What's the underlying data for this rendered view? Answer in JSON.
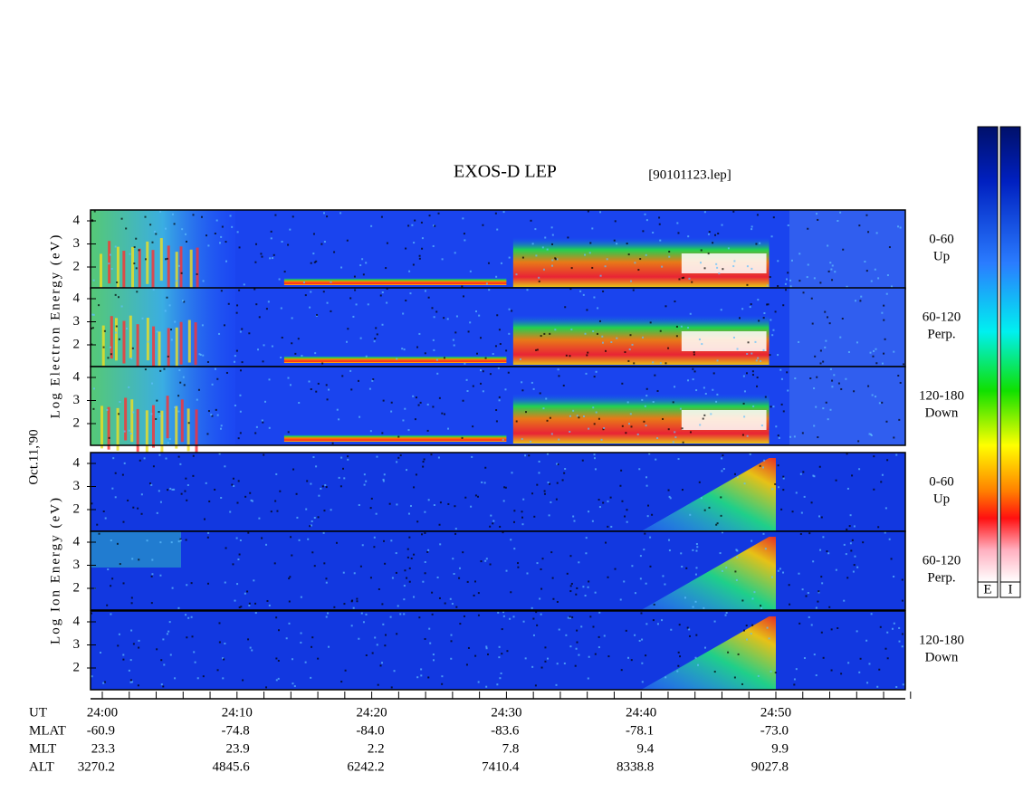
{
  "title": "EXOS-D LEP",
  "file_name": "[90101123.lep]",
  "date_label": "Oct.11,'90",
  "electron_axis_label": "Log Electron Energy (eV)",
  "ion_axis_label": "Log Ion Energy (eV)",
  "panels": [
    {
      "species": "electron",
      "pitch_range": "0-60",
      "direction": "Up",
      "yticks": [
        2,
        3,
        4
      ]
    },
    {
      "species": "electron",
      "pitch_range": "60-120",
      "direction": "Perp.",
      "yticks": [
        2,
        3,
        4
      ]
    },
    {
      "species": "electron",
      "pitch_range": "120-180",
      "direction": "Down",
      "yticks": [
        2,
        3,
        4
      ]
    },
    {
      "species": "ion",
      "pitch_range": "0-60",
      "direction": "Up",
      "yticks": [
        2,
        3,
        4
      ]
    },
    {
      "species": "ion",
      "pitch_range": "60-120",
      "direction": "Perp.",
      "yticks": [
        2,
        3,
        4
      ]
    },
    {
      "species": "ion",
      "pitch_range": "120-180",
      "direction": "Down",
      "yticks": [
        2,
        3,
        4
      ]
    }
  ],
  "time_axis": {
    "label": "UT",
    "ticks": [
      "24:00",
      "24:10",
      "24:20",
      "24:30",
      "24:40",
      "24:50"
    ]
  },
  "orbit_table": [
    {
      "label": "MLAT",
      "values": [
        "-60.9",
        "-74.8",
        "-84.0",
        "-83.6",
        "-78.1",
        "-73.0"
      ]
    },
    {
      "label": "MLT",
      "values": [
        "23.3",
        "23.9",
        "2.2",
        "7.8",
        "9.4",
        "9.9"
      ]
    },
    {
      "label": "ALT",
      "values": [
        "3270.2",
        "4845.6",
        "6242.2",
        "7410.4",
        "8338.8",
        "9027.8"
      ]
    }
  ],
  "colorbar_labels": [
    "E",
    "I"
  ]
}
